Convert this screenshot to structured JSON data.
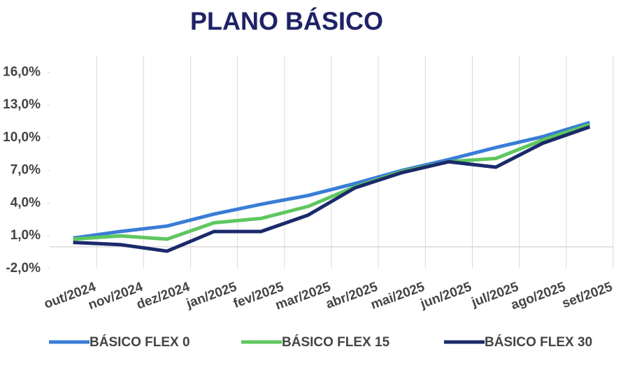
{
  "chart_data": {
    "type": "line",
    "title": "PLANO BÁSICO",
    "categories": [
      "out/2024",
      "nov/2024",
      "dez/2024",
      "jan/2025",
      "fev/2025",
      "mar/2025",
      "abr/2025",
      "mai/2025",
      "jun/2025",
      "jul/2025",
      "ago/2025",
      "set/2025"
    ],
    "series": [
      {
        "name": "BÁSICO FLEX 0",
        "color": "#3a7dd6",
        "values": [
          0.8,
          1.4,
          1.9,
          3.0,
          3.9,
          4.7,
          5.8,
          7.0,
          8.0,
          9.1,
          10.1,
          11.4
        ]
      },
      {
        "name": "BÁSICO FLEX 15",
        "color": "#5ec75e",
        "values": [
          0.7,
          1.0,
          0.7,
          2.2,
          2.6,
          3.7,
          5.5,
          6.9,
          7.8,
          8.1,
          9.8,
          11.2
        ]
      },
      {
        "name": "BÁSICO FLEX 30",
        "color": "#1b2a6b",
        "values": [
          0.4,
          0.2,
          -0.4,
          1.4,
          1.4,
          2.9,
          5.4,
          6.8,
          7.8,
          7.3,
          9.5,
          11.0
        ]
      }
    ],
    "ylim": [
      -2,
      17.5
    ],
    "yticks": [
      {
        "value": -2,
        "label": "-2,0%"
      },
      {
        "value": 1,
        "label": "1,0%"
      },
      {
        "value": 4,
        "label": "4,0%"
      },
      {
        "value": 7,
        "label": "7,0%"
      },
      {
        "value": 10,
        "label": "10,0%"
      },
      {
        "value": 13,
        "label": "13,0%"
      },
      {
        "value": 16,
        "label": "16,0%"
      }
    ],
    "grid": true,
    "legend": "bottom"
  }
}
